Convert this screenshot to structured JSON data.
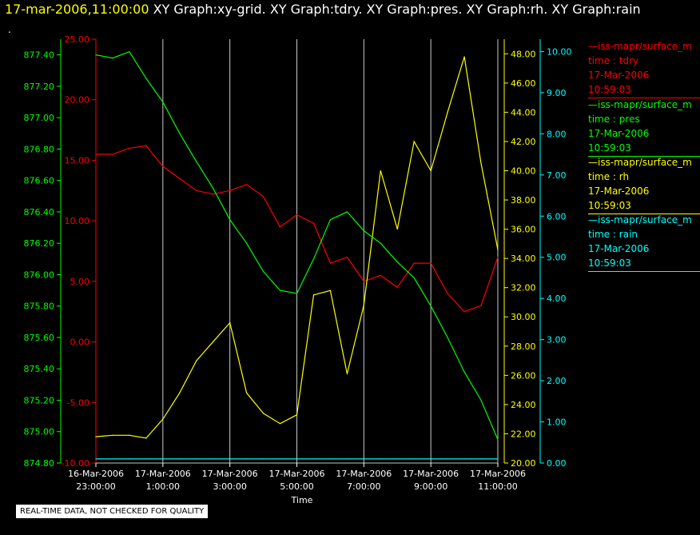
{
  "header": {
    "date": "17-mar-2006,11:00:00",
    "graphs": " XY Graph:xy-grid.  XY Graph:tdry.  XY Graph:pres.  XY Graph:rh.  XY Graph:rain",
    "dot": "."
  },
  "footer": {
    "note": "REAL-TIME DATA, NOT CHECKED FOR QUALITY"
  },
  "colors": {
    "tdry": "#ff0000",
    "pres": "#00ff00",
    "rh": "#ffff00",
    "rain": "#00ffff",
    "grid": "#c8c8c8",
    "background": "#000000"
  },
  "legend": [
    {
      "source": "—iss-mapr/surface_m",
      "var": "time : tdry",
      "date": "17-Mar-2006",
      "time": "10:59:03",
      "color": "#ff0000"
    },
    {
      "source": "—iss-mapr/surface_m",
      "var": "time : pres",
      "date": "17-Mar-2006",
      "time": "10:59:03",
      "color": "#00ff00"
    },
    {
      "source": "—iss-mapr/surface_m",
      "var": "time : rh",
      "date": "17-Mar-2006",
      "time": "10:59:03",
      "color": "#ffff00"
    },
    {
      "source": "—iss-mapr/surface_m",
      "var": "time : rain",
      "date": "17-Mar-2006",
      "time": "10:59:03",
      "color": "#00ffff"
    }
  ],
  "chart_data": {
    "type": "line",
    "xlabel": "Time",
    "x_tick_labels": [
      [
        "16-Mar-2006",
        "23:00:00"
      ],
      [
        "17-Mar-2006",
        "1:00:00"
      ],
      [
        "17-Mar-2006",
        "3:00:00"
      ],
      [
        "17-Mar-2006",
        "5:00:00"
      ],
      [
        "17-Mar-2006",
        "7:00:00"
      ],
      [
        "17-Mar-2006",
        "9:00:00"
      ],
      [
        "17-Mar-2006",
        "11:00:00"
      ]
    ],
    "xlim": [
      "16-Mar-2006 23:00:00",
      "17-Mar-2006 11:00:00"
    ],
    "grid": "vertical",
    "axes": [
      {
        "series": "pres",
        "ylim": [
          874.8,
          877.5
        ],
        "ticks": [
          "874.80",
          "875.00",
          "875.20",
          "875.40",
          "875.60",
          "875.80",
          "876.00",
          "876.20",
          "876.40",
          "876.60",
          "876.80",
          "877.00",
          "877.20",
          "877.40"
        ]
      },
      {
        "series": "tdry",
        "ylim": [
          -10,
          25
        ],
        "ticks": [
          "-10.00",
          "-5.00",
          "0.00",
          "5.00",
          "10.00",
          "15.00",
          "20.00",
          "25.00"
        ]
      },
      {
        "series": "rh",
        "ylim": [
          20,
          49
        ],
        "ticks": [
          "20.00",
          "22.00",
          "24.00",
          "26.00",
          "28.00",
          "30.00",
          "32.00",
          "34.00",
          "36.00",
          "38.00",
          "40.00",
          "42.00",
          "44.00",
          "46.00",
          "48.00"
        ]
      },
      {
        "series": "rain",
        "ylim": [
          0,
          10.3
        ],
        "ticks": [
          "0.00",
          "1.00",
          "2.00",
          "3.00",
          "4.00",
          "5.00",
          "6.00",
          "7.00",
          "8.00",
          "9.00",
          "10.00"
        ]
      }
    ],
    "x_hours": [
      0,
      0.5,
      1,
      1.5,
      2,
      2.5,
      3,
      3.5,
      4,
      4.5,
      5,
      5.5,
      6,
      6.5,
      7,
      7.5,
      8,
      8.5,
      9,
      9.5,
      10,
      10.5,
      11,
      11.5,
      12
    ],
    "series": [
      {
        "key": "tdry",
        "values": [
          15.5,
          15.5,
          16.0,
          16.2,
          14.5,
          13.5,
          12.5,
          12.2,
          12.5,
          13.0,
          12.0,
          9.5,
          10.5,
          9.8,
          6.5,
          7.0,
          5.0,
          5.5,
          4.5,
          6.5,
          6.5,
          4.0,
          2.5,
          3.0,
          7.0
        ]
      },
      {
        "key": "pres",
        "values": [
          877.4,
          877.38,
          877.42,
          877.25,
          877.1,
          876.9,
          876.72,
          876.55,
          876.35,
          876.2,
          876.02,
          875.9,
          875.88,
          876.1,
          876.35,
          876.4,
          876.28,
          876.2,
          876.08,
          875.98,
          875.8,
          875.6,
          875.38,
          875.2,
          874.95
        ]
      },
      {
        "key": "rh",
        "values": [
          21.8,
          21.9,
          21.9,
          21.7,
          23.0,
          24.8,
          27.0,
          28.3,
          29.6,
          24.8,
          23.4,
          22.7,
          23.3,
          31.5,
          31.8,
          26.1,
          30.8,
          40.0,
          36.0,
          42.0,
          40.0,
          44.0,
          47.8,
          40.5,
          34.6
        ]
      },
      {
        "key": "rain",
        "values": [
          0.1,
          0.1,
          0.1,
          0.1,
          0.1,
          0.1,
          0.1,
          0.1,
          0.1,
          0.1,
          0.1,
          0.1,
          0.1,
          0.1,
          0.1,
          0.1,
          0.1,
          0.1,
          0.1,
          0.1,
          0.1,
          0.1,
          0.1,
          0.1,
          0.1
        ]
      }
    ]
  }
}
